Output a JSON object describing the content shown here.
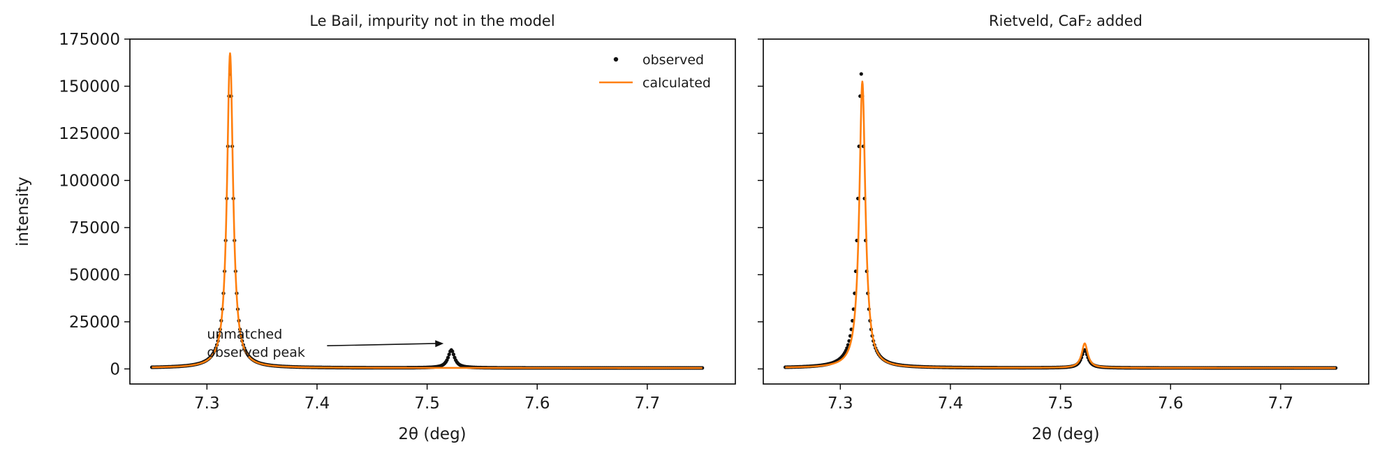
{
  "figure": {
    "ylabel": "intensity",
    "colors": {
      "observed": "#111111",
      "calculated": "#ff7f0e",
      "axes": "#000000"
    },
    "legend": {
      "observed_label": "observed",
      "calculated_label": "calculated",
      "placement": "upper-right (left panel)"
    }
  },
  "chart_data": [
    {
      "type": "line",
      "title": "Le Bail, impurity not in the model",
      "xlabel": "2θ (deg)",
      "ylabel": "intensity",
      "xlim": [
        7.23,
        7.78
      ],
      "ylim": [
        -8000,
        175000
      ],
      "xticks": [
        7.3,
        7.4,
        7.5,
        7.6,
        7.7
      ],
      "xtick_labels": [
        "7.3",
        "7.4",
        "7.5",
        "7.6",
        "7.7"
      ],
      "yticks": [
        0,
        25000,
        50000,
        75000,
        100000,
        125000,
        150000,
        175000
      ],
      "ytick_labels": [
        "0",
        "25000",
        "50000",
        "75000",
        "100000",
        "125000",
        "150000",
        "175000"
      ],
      "x_range": [
        7.25,
        7.75
      ],
      "series": [
        {
          "name": "observed",
          "style": "markers",
          "peaks": [
            {
              "center": 7.321,
              "height": 156000,
              "hwhm": 0.0035
            },
            {
              "center": 7.522,
              "height": 9500,
              "hwhm": 0.0035
            }
          ],
          "background": 500
        },
        {
          "name": "calculated",
          "style": "line",
          "peaks": [
            {
              "center": 7.321,
              "height": 167000,
              "hwhm": 0.0033
            }
          ],
          "background": 500
        }
      ],
      "annotations": [
        {
          "text_lines": [
            "unmatched",
            "observed peak"
          ],
          "text_xy": [
            7.3,
            16000
          ],
          "arrow_to": [
            7.515,
            13500
          ]
        }
      ]
    },
    {
      "type": "line",
      "title": "Rietveld, CaF₂ added",
      "xlabel": "2θ (deg)",
      "xlim": [
        7.23,
        7.78
      ],
      "ylim": [
        -8000,
        175000
      ],
      "xticks": [
        7.3,
        7.4,
        7.5,
        7.6,
        7.7
      ],
      "xtick_labels": [
        "7.3",
        "7.4",
        "7.5",
        "7.6",
        "7.7"
      ],
      "yticks": [
        0,
        25000,
        50000,
        75000,
        100000,
        125000,
        150000,
        175000
      ],
      "ytick_labels": [],
      "x_range": [
        7.25,
        7.75
      ],
      "series": [
        {
          "name": "observed",
          "style": "markers",
          "peaks": [
            {
              "center": 7.319,
              "height": 156000,
              "hwhm": 0.0035
            },
            {
              "center": 7.522,
              "height": 9500,
              "hwhm": 0.0035
            }
          ],
          "background": 500
        },
        {
          "name": "calculated",
          "style": "line",
          "peaks": [
            {
              "center": 7.32,
              "height": 152000,
              "hwhm": 0.0033
            },
            {
              "center": 7.522,
              "height": 13000,
              "hwhm": 0.0033
            }
          ],
          "background": 500
        }
      ],
      "annotations": []
    }
  ]
}
